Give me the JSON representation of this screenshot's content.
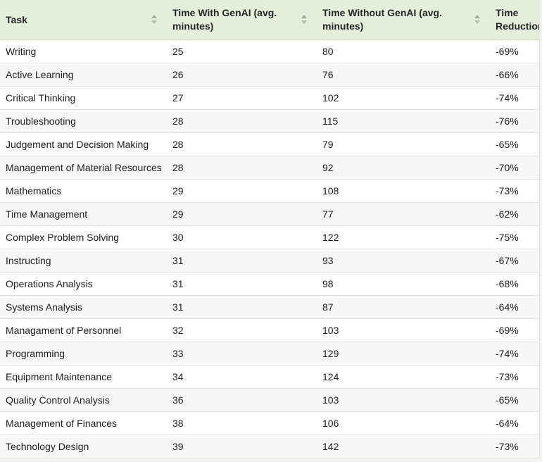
{
  "table": {
    "columns": [
      {
        "key": "task",
        "label": "Task",
        "sortable": true
      },
      {
        "key": "time_with_genai",
        "label": "Time With GenAI (avg. minutes)",
        "sortable": true
      },
      {
        "key": "time_without_genai",
        "label": "Time Without GenAI (avg. minutes)",
        "sortable": true
      },
      {
        "key": "time_reduction",
        "label": "Time Reduction",
        "sortable": false
      }
    ],
    "rows": [
      {
        "task": "Writing",
        "time_with_genai": "25",
        "time_without_genai": "80",
        "time_reduction": "-69%"
      },
      {
        "task": "Active Learning",
        "time_with_genai": "26",
        "time_without_genai": "76",
        "time_reduction": "-66%"
      },
      {
        "task": "Critical Thinking",
        "time_with_genai": "27",
        "time_without_genai": "102",
        "time_reduction": "-74%"
      },
      {
        "task": "Troubleshooting",
        "time_with_genai": "28",
        "time_without_genai": "115",
        "time_reduction": "-76%"
      },
      {
        "task": "Judgement and Decision Making",
        "time_with_genai": "28",
        "time_without_genai": "79",
        "time_reduction": "-65%"
      },
      {
        "task": "Management of Material Resources",
        "time_with_genai": "28",
        "time_without_genai": "92",
        "time_reduction": "-70%"
      },
      {
        "task": "Mathematics",
        "time_with_genai": "29",
        "time_without_genai": "108",
        "time_reduction": "-73%"
      },
      {
        "task": "Time Management",
        "time_with_genai": "29",
        "time_without_genai": "77",
        "time_reduction": "-62%"
      },
      {
        "task": "Complex Problem Solving",
        "time_with_genai": "30",
        "time_without_genai": "122",
        "time_reduction": "-75%"
      },
      {
        "task": "Instructing",
        "time_with_genai": "31",
        "time_without_genai": "93",
        "time_reduction": "-67%"
      },
      {
        "task": "Operations Analysis",
        "time_with_genai": "31",
        "time_without_genai": "98",
        "time_reduction": "-68%"
      },
      {
        "task": "Systems Analysis",
        "time_with_genai": "31",
        "time_without_genai": "87",
        "time_reduction": "-64%"
      },
      {
        "task": "Managament of Personnel",
        "time_with_genai": "32",
        "time_without_genai": "103",
        "time_reduction": "-69%"
      },
      {
        "task": "Programming",
        "time_with_genai": "33",
        "time_without_genai": "129",
        "time_reduction": "-74%"
      },
      {
        "task": "Equipment Maintenance",
        "time_with_genai": "34",
        "time_without_genai": "124",
        "time_reduction": "-73%"
      },
      {
        "task": "Quality Control Analysis",
        "time_with_genai": "36",
        "time_without_genai": "103",
        "time_reduction": "-65%"
      },
      {
        "task": "Management of Finances",
        "time_with_genai": "38",
        "time_without_genai": "106",
        "time_reduction": "-64%"
      },
      {
        "task": "Technology Design",
        "time_with_genai": "39",
        "time_without_genai": "142",
        "time_reduction": "-73%"
      }
    ]
  },
  "colors": {
    "header_bg": "#e3eedb",
    "stripe_bg": "#f7f7f7",
    "row_border": "#e3e3e3",
    "text": "#212121",
    "sort_arrow": "#a9b19f"
  }
}
